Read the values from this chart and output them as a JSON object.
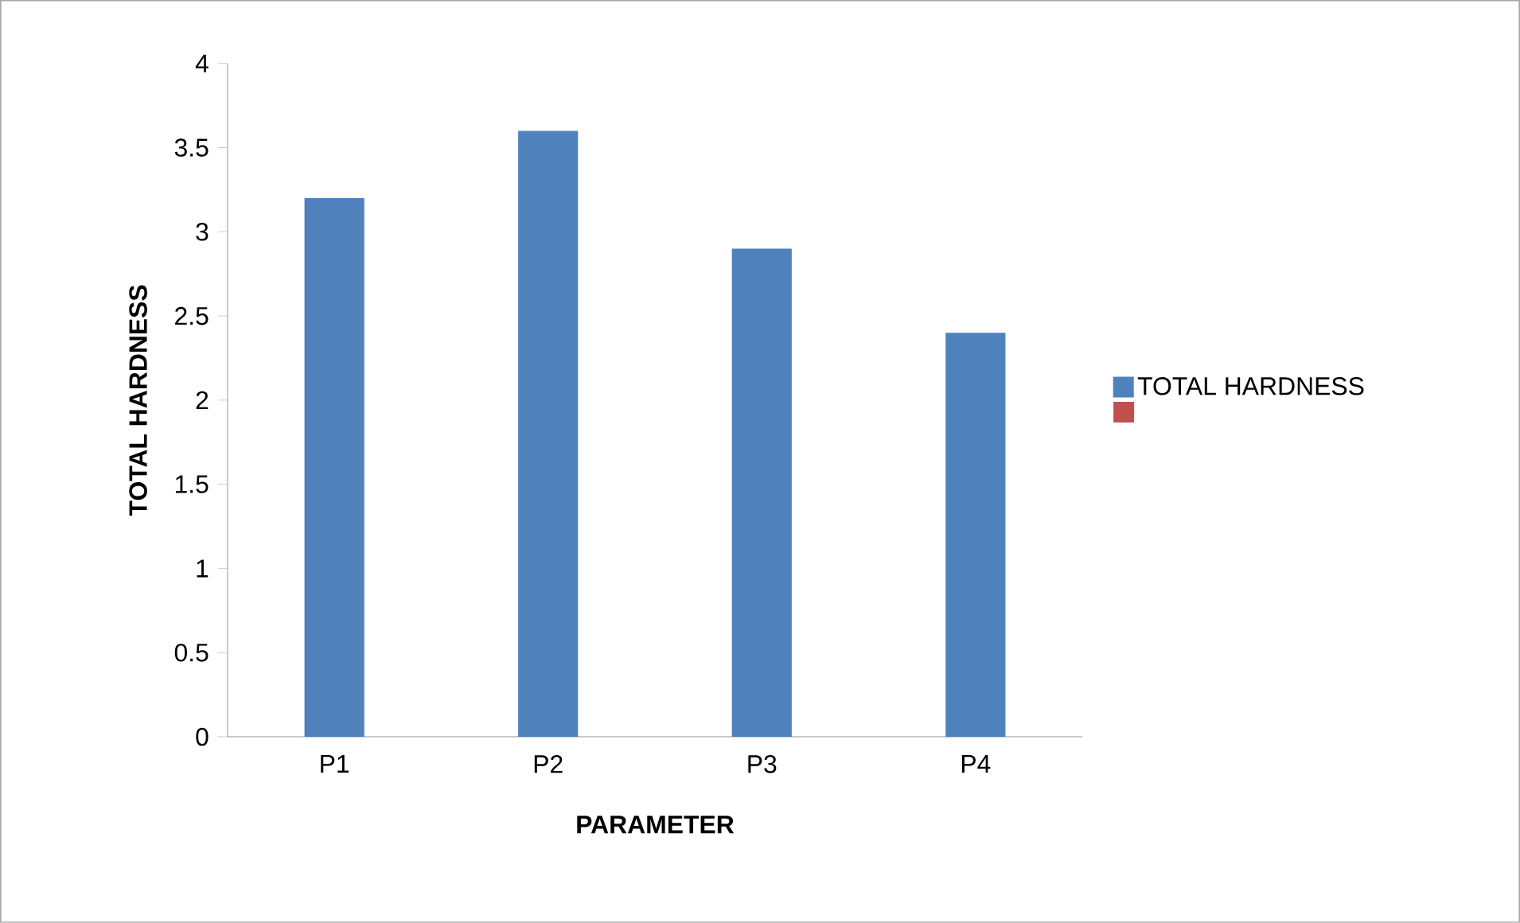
{
  "chart_data": {
    "type": "bar",
    "xlabel": "PARAMETER",
    "ylabel": "TOTAL HARDNESS",
    "categories": [
      "P1",
      "P2",
      "P3",
      "P4"
    ],
    "series": [
      {
        "name": "TOTAL HARDNESS",
        "color": "#4f81bd",
        "values": [
          3.2,
          3.6,
          2.9,
          2.4
        ]
      },
      {
        "color": "#c0504d",
        "values": [
          null,
          null,
          null,
          null
        ]
      }
    ],
    "ylim": [
      0,
      4
    ],
    "yticks": [
      0,
      0.5,
      1,
      1.5,
      2,
      2.5,
      3,
      3.5,
      4
    ],
    "legend": "right"
  }
}
